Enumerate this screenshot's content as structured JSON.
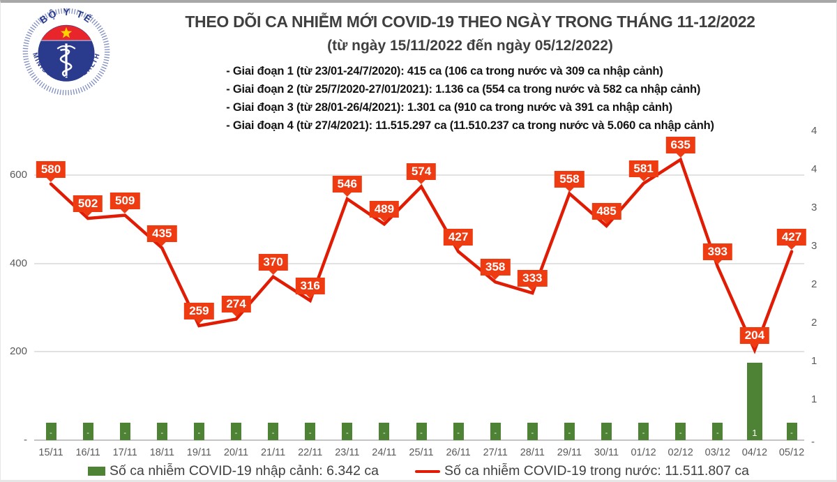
{
  "logo": {
    "top_text": "BỘ Y TẾ",
    "bottom_text": "MINISTRY OF HEALTH",
    "colors": {
      "navy": "#2a3a8c",
      "red": "#e8252b",
      "star": "#ffd100",
      "ring": "#7d8bc0"
    }
  },
  "header": {
    "title": "THEO DÕI CA NHIỄM MỚI COVID-19 THEO NGÀY TRONG THÁNG 11-12/2022",
    "subtitle": "(từ ngày 15/11/2022 đến ngày 05/12/2022)",
    "phases": [
      "- Giai đoạn 1 (từ 23/01-24/7/2020): 415 ca (106 ca trong nước và 309 ca nhập cảnh)",
      "- Giai đoạn 2 (từ 25/7/2020-27/01/2021): 1.136 ca (554 ca trong nước và 582 ca nhập cảnh)",
      "- Giai đoạn 3 (từ 28/01-26/4/2021): 1.301 ca (910 ca trong nước và 391 ca nhập cảnh)",
      "- Giai đoạn 4 (từ 27/4/2021): 11.515.297 ca (11.510.237 ca trong nước và 5.060 ca nhập cảnh)"
    ]
  },
  "chart_data": {
    "type": "line+bar",
    "categories": [
      "15/11",
      "16/11",
      "17/11",
      "18/11",
      "19/11",
      "20/11",
      "21/11",
      "22/11",
      "23/11",
      "24/11",
      "25/11",
      "26/11",
      "27/11",
      "28/11",
      "29/11",
      "30/11",
      "01/12",
      "02/12",
      "03/12",
      "04/12",
      "05/12"
    ],
    "series": [
      {
        "name": "Số ca nhiễm COVID-19 trong nước",
        "type": "line",
        "color": "#e01d04",
        "label_box_color": "#ef3b12",
        "values": [
          580,
          502,
          509,
          435,
          259,
          274,
          370,
          316,
          546,
          489,
          574,
          427,
          358,
          333,
          558,
          485,
          581,
          635,
          393,
          204,
          427
        ]
      },
      {
        "name": "Số ca nhiễm COVID-19 nhập cảnh",
        "type": "bar",
        "color": "#4e8234",
        "bar_labels": [
          "-",
          "-",
          "-",
          "-",
          "-",
          "-",
          "-",
          "-",
          "-",
          "-",
          "-",
          "-",
          "-",
          "-",
          "-",
          "-",
          "-",
          "-",
          "-",
          "1",
          "-"
        ],
        "approx_heights_primary_axis_units": [
          40,
          40,
          40,
          40,
          40,
          40,
          40,
          40,
          40,
          40,
          40,
          40,
          40,
          40,
          40,
          40,
          40,
          40,
          40,
          175,
          40
        ]
      }
    ],
    "left_axis": {
      "tick_labels": [
        "600",
        "400",
        "200",
        "-"
      ],
      "tick_values": [
        600,
        400,
        200,
        0
      ],
      "max": 600
    },
    "right_axis": {
      "tick_labels": [
        "4",
        "4",
        "3",
        "3",
        "2",
        "2",
        "1",
        "1",
        "-"
      ]
    },
    "grid": true,
    "legend_position": "bottom"
  },
  "legend": {
    "items": [
      {
        "swatch": "bar",
        "color": "#4e8234",
        "label": "Số ca nhiễm COVID-19 nhập cảnh: 6.342 ca"
      },
      {
        "swatch": "line",
        "color": "#e01d04",
        "label": "Số ca nhiễm COVID-19 trong nước: 11.511.807 ca"
      }
    ]
  }
}
